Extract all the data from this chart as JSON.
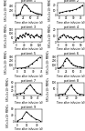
{
  "panels": [
    {
      "title": "patient 1",
      "xlabel": "patient 1",
      "x": [
        0,
        7,
        14,
        21,
        28,
        35,
        42,
        49,
        56,
        63,
        70,
        77,
        84
      ],
      "y": [
        10,
        15,
        80,
        350,
        480,
        420,
        300,
        200,
        150,
        100,
        80,
        60,
        50
      ],
      "ylim": [
        0,
        550
      ],
      "yticks": [
        0,
        200,
        400
      ]
    },
    {
      "title": "patient 2",
      "xlabel": "patient 2",
      "x": [
        0,
        7,
        14,
        21,
        28,
        35,
        42,
        49
      ],
      "y": [
        5,
        6,
        8,
        9,
        10,
        12,
        15,
        20
      ],
      "ylim": [
        0,
        25
      ],
      "yticks": [
        0,
        10,
        20
      ]
    },
    {
      "title": "patient 3",
      "xlabel": "patient 3",
      "x": [
        0,
        7,
        14,
        21,
        28,
        35,
        42,
        49,
        56,
        63,
        70,
        77,
        84,
        91,
        98,
        105,
        112,
        119,
        126
      ],
      "y": [
        20,
        50,
        40,
        80,
        55,
        90,
        65,
        110,
        85,
        95,
        60,
        85,
        70,
        60,
        75,
        90,
        65,
        55,
        80
      ],
      "ylim": [
        0,
        150
      ],
      "yticks": [
        0,
        50,
        100,
        150
      ]
    },
    {
      "title": "patient 4",
      "xlabel": "patient 4",
      "x": [
        0,
        7,
        14,
        21,
        28,
        35,
        42,
        49,
        56,
        63,
        70,
        77,
        84,
        91,
        98
      ],
      "y": [
        5,
        8,
        10,
        12,
        8,
        10,
        7,
        8,
        5,
        7,
        9,
        8,
        6,
        7,
        8
      ],
      "ylim": [
        0,
        20
      ],
      "yticks": [
        0,
        10,
        20
      ]
    },
    {
      "title": "patient 5",
      "xlabel": "patient 5",
      "x": [
        0,
        7,
        14,
        21,
        28,
        35,
        42
      ],
      "y": [
        5,
        10,
        20,
        60,
        130,
        210,
        290
      ],
      "ylim": [
        0,
        320
      ],
      "yticks": [
        0,
        100,
        200,
        300
      ]
    },
    {
      "title": "patient 6",
      "xlabel": "patient 6",
      "x": [
        0,
        7,
        14,
        21,
        28,
        35,
        42,
        49,
        56,
        63,
        70,
        77,
        84
      ],
      "y": [
        10,
        30,
        80,
        200,
        270,
        210,
        140,
        90,
        70,
        55,
        45,
        35,
        25
      ],
      "ylim": [
        0,
        320
      ],
      "yticks": [
        0,
        100,
        200,
        300
      ]
    },
    {
      "title": "patient 7",
      "xlabel": "patient 7",
      "x": [
        0,
        7,
        14,
        21,
        28,
        35,
        42,
        49
      ],
      "y": [
        5,
        8,
        12,
        35,
        50,
        28,
        10,
        5
      ],
      "ylim": [
        0,
        60
      ],
      "yticks": [
        0,
        20,
        40,
        60
      ]
    },
    {
      "title": "patient 8",
      "xlabel": "patient 8",
      "x": [
        0,
        7,
        14,
        21,
        28,
        35,
        42,
        49,
        56
      ],
      "y": [
        5,
        8,
        12,
        45,
        80,
        45,
        18,
        8,
        5
      ],
      "ylim": [
        0,
        100
      ],
      "yticks": [
        0,
        50,
        100
      ]
    },
    {
      "title": "patient 9",
      "xlabel": "patient 9",
      "x": [
        0,
        7,
        14,
        21,
        28,
        35
      ],
      "y": [
        5,
        20,
        65,
        38,
        18,
        8
      ],
      "ylim": [
        0,
        80
      ],
      "yticks": [
        0,
        40,
        80
      ]
    }
  ],
  "line_color": "#000000",
  "marker": "o",
  "marker_size": 0.8,
  "line_width": 0.5,
  "title_fontsize": 2.5,
  "label_fontsize": 2.0,
  "tick_fontsize": 2.0,
  "background_color": "#ffffff",
  "common_ylabel": "SFCs/2×10⁵ PBMCs",
  "common_xlabel": "Time after infusion (d)"
}
